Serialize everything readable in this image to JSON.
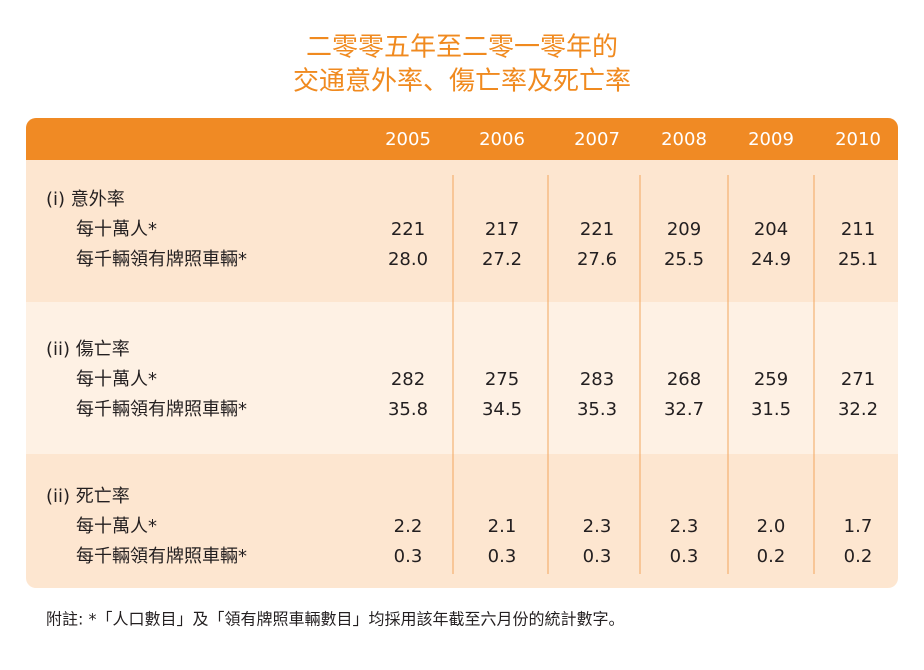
{
  "title": [
    "二零零五年至二零一零年的",
    "交通意外率、傷亡率及死亡率"
  ],
  "table": {
    "header": [
      "2005",
      "2006",
      "2007",
      "2008",
      "2009",
      "2010"
    ],
    "sections": [
      {
        "label": "(i) 意外率",
        "rows": [
          {
            "label": "每十萬人*",
            "cells": [
              "221",
              "217",
              "221",
              "209",
              "204",
              "211"
            ]
          },
          {
            "label": "每千輛領有牌照車輛*",
            "cells": [
              "28.0",
              "27.2",
              "27.6",
              "25.5",
              "24.9",
              "25.1"
            ]
          }
        ]
      },
      {
        "label": "(ii) 傷亡率",
        "rows": [
          {
            "label": "每十萬人*",
            "cells": [
              "282",
              "275",
              "283",
              "268",
              "259",
              "271"
            ]
          },
          {
            "label": "每千輛領有牌照車輛*",
            "cells": [
              "35.8",
              "34.5",
              "35.3",
              "32.7",
              "31.5",
              "32.2"
            ]
          }
        ]
      },
      {
        "label": "(ii) 死亡率",
        "rows": [
          {
            "label": "每十萬人*",
            "cells": [
              "2.2",
              "2.1",
              "2.3",
              "2.3",
              "2.0",
              "1.7"
            ]
          },
          {
            "label": "每千輛領有牌照車輛*",
            "cells": [
              "0.3",
              "0.3",
              "0.3",
              "0.3",
              "0.2",
              "0.2"
            ]
          }
        ]
      }
    ]
  },
  "footnote": "附註: *「人口數目」及「領有牌照車輛數目」均採用該年截至六月份的統計數字。"
}
